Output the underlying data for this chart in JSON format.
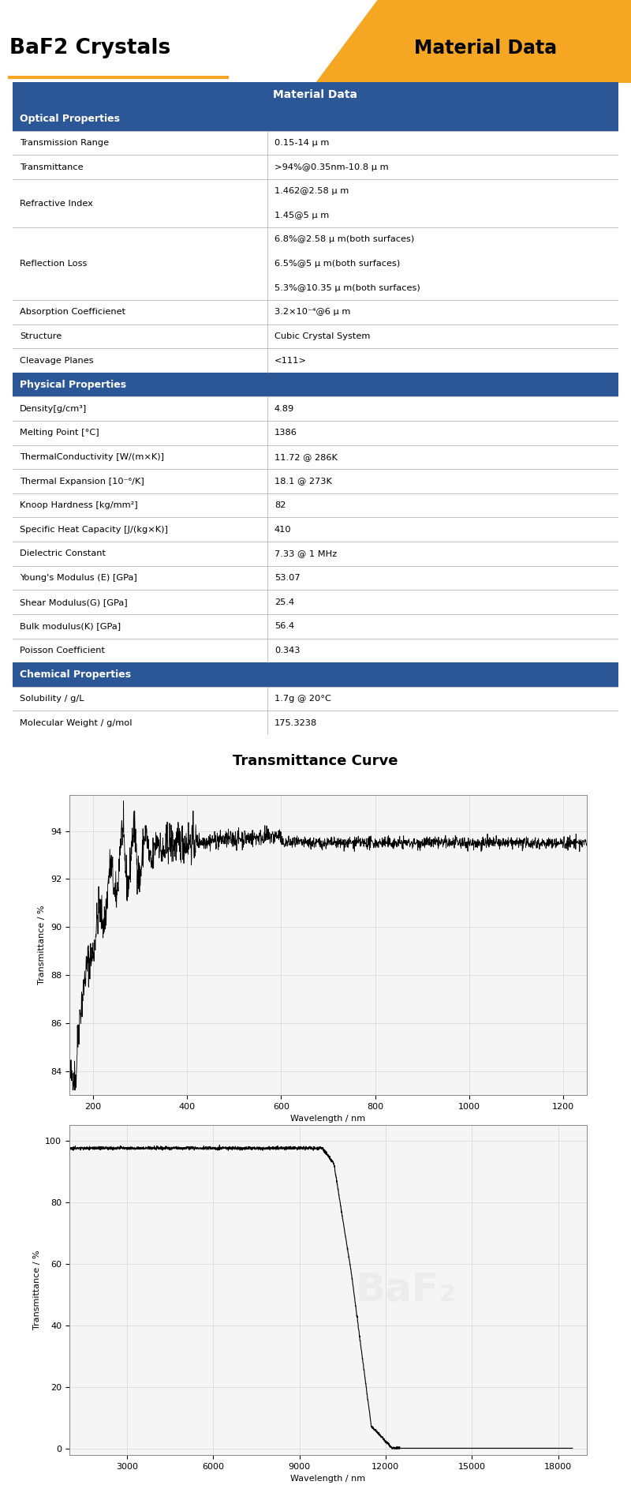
{
  "title": "BaF2 Crystals",
  "banner": "Material Data",
  "header_color": "#2B5797",
  "orange_color": "#F5A623",
  "table_header": "Material Data",
  "rows": [
    {
      "section": "Optical Properties"
    },
    {
      "property": "Transmission Range",
      "value": "0.15-14 μ m"
    },
    {
      "property": "Transmittance",
      "value": ">94%@0.35nm-10.8 μ m"
    },
    {
      "property": "Refractive Index",
      "value": "1.462@2.58 μ m\n1.45@5 μ m"
    },
    {
      "property": "Reflection Loss",
      "value": "6.8%@2.58 μ m(both surfaces)\n6.5%@5 μ m(both surfaces)\n5.3%@10.35 μ m(both surfaces)"
    },
    {
      "property": "Absorption Coefficienet",
      "value": "3.2×10⁻⁴@6 μ m"
    },
    {
      "property": "Structure",
      "value": "Cubic Crystal System"
    },
    {
      "property": "Cleavage Planes",
      "value": "<111>"
    },
    {
      "section": "Physical Properties"
    },
    {
      "property": "Density[g/cm³]",
      "value": "4.89"
    },
    {
      "property": "Melting Point [°C]",
      "value": "1386"
    },
    {
      "property": "ThermalConductivity [W/(m×K)]",
      "value": "11.72 @ 286K"
    },
    {
      "property": "Thermal Expansion [10⁻⁶/K]",
      "value": "18.1 @ 273K"
    },
    {
      "property": "Knoop Hardness [kg/mm²]",
      "value": "82"
    },
    {
      "property": "Specific Heat Capacity [J/(kg×K)]",
      "value": "410"
    },
    {
      "property": "Dielectric Constant",
      "value": "7.33 @ 1 MHz"
    },
    {
      "property": "Young's Modulus (E) [GPa]",
      "value": "53.07"
    },
    {
      "property": "Shear Modulus(G) [GPa]",
      "value": "25.4"
    },
    {
      "property": "Bulk modulus(K) [GPa]",
      "value": "56.4"
    },
    {
      "property": "Poisson Coefficient",
      "value": "0.343"
    },
    {
      "section": "Chemical Properties"
    },
    {
      "property": "Solubility / g/L",
      "value": "1.7g @ 20°C"
    },
    {
      "property": "Molecular Weight / g/mol",
      "value": "175.3238"
    }
  ],
  "transmittance_title": "Transmittance Curve",
  "curve1_ylabel": "Transmittance / %",
  "curve1_xlabel": "Wavelength / nm",
  "curve1_xlim": [
    150,
    1250
  ],
  "curve1_ylim": [
    83,
    95.5
  ],
  "curve1_yticks": [
    84,
    86,
    88,
    90,
    92,
    94
  ],
  "curve1_xticks": [
    200,
    400,
    600,
    800,
    1000,
    1200
  ],
  "curve2_ylabel": "Transmittance / %",
  "curve2_xlabel": "Wavelength / nm",
  "curve2_xlim": [
    1000,
    19000
  ],
  "curve2_ylim": [
    -2,
    105
  ],
  "curve2_yticks": [
    0,
    20,
    40,
    60,
    80,
    100
  ],
  "curve2_xticks": [
    3000,
    6000,
    9000,
    12000,
    15000,
    18000
  ]
}
